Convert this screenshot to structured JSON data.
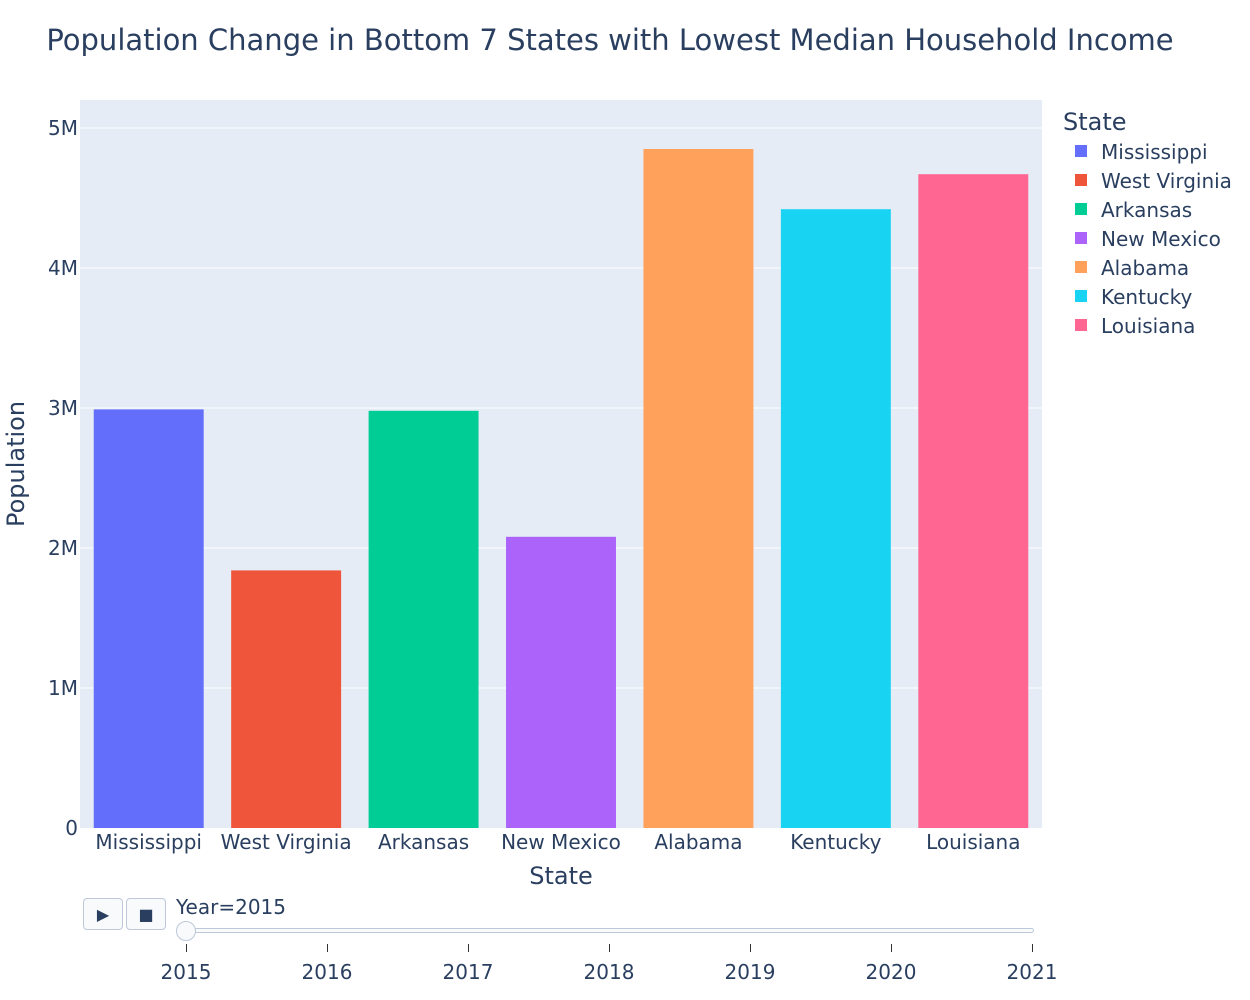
{
  "chart_data": {
    "type": "bar",
    "title": "Population Change in Bottom 7 States with Lowest Median Household Income",
    "xlabel": "State",
    "ylabel": "Population",
    "categories": [
      "Mississippi",
      "West Virginia",
      "Arkansas",
      "New Mexico",
      "Alabama",
      "Kentucky",
      "Louisiana"
    ],
    "values": [
      2990000,
      1840000,
      2980000,
      2080000,
      4850000,
      4420000,
      4670000
    ],
    "colors": [
      "#636efa",
      "#ef553b",
      "#00cc96",
      "#ab63fa",
      "#ffa15a",
      "#19d3f3",
      "#ff6692"
    ],
    "ylim": [
      0,
      5200000
    ],
    "yticks": [
      {
        "value": 0,
        "label": "0"
      },
      {
        "value": 1000000,
        "label": "1M"
      },
      {
        "value": 2000000,
        "label": "2M"
      },
      {
        "value": 3000000,
        "label": "3M"
      },
      {
        "value": 4000000,
        "label": "4M"
      },
      {
        "value": 5000000,
        "label": "5M"
      }
    ],
    "grid": true,
    "legend": {
      "title": "State",
      "placement": "right",
      "entries": [
        "Mississippi",
        "West Virginia",
        "Arkansas",
        "New Mexico",
        "Alabama",
        "Kentucky",
        "Louisiana"
      ]
    }
  },
  "animation": {
    "play_icon": "play-icon",
    "stop_icon": "stop-icon",
    "current_label": "Year=2015",
    "current_year": 2015,
    "years": [
      "2015",
      "2016",
      "2017",
      "2018",
      "2019",
      "2020",
      "2021"
    ]
  }
}
